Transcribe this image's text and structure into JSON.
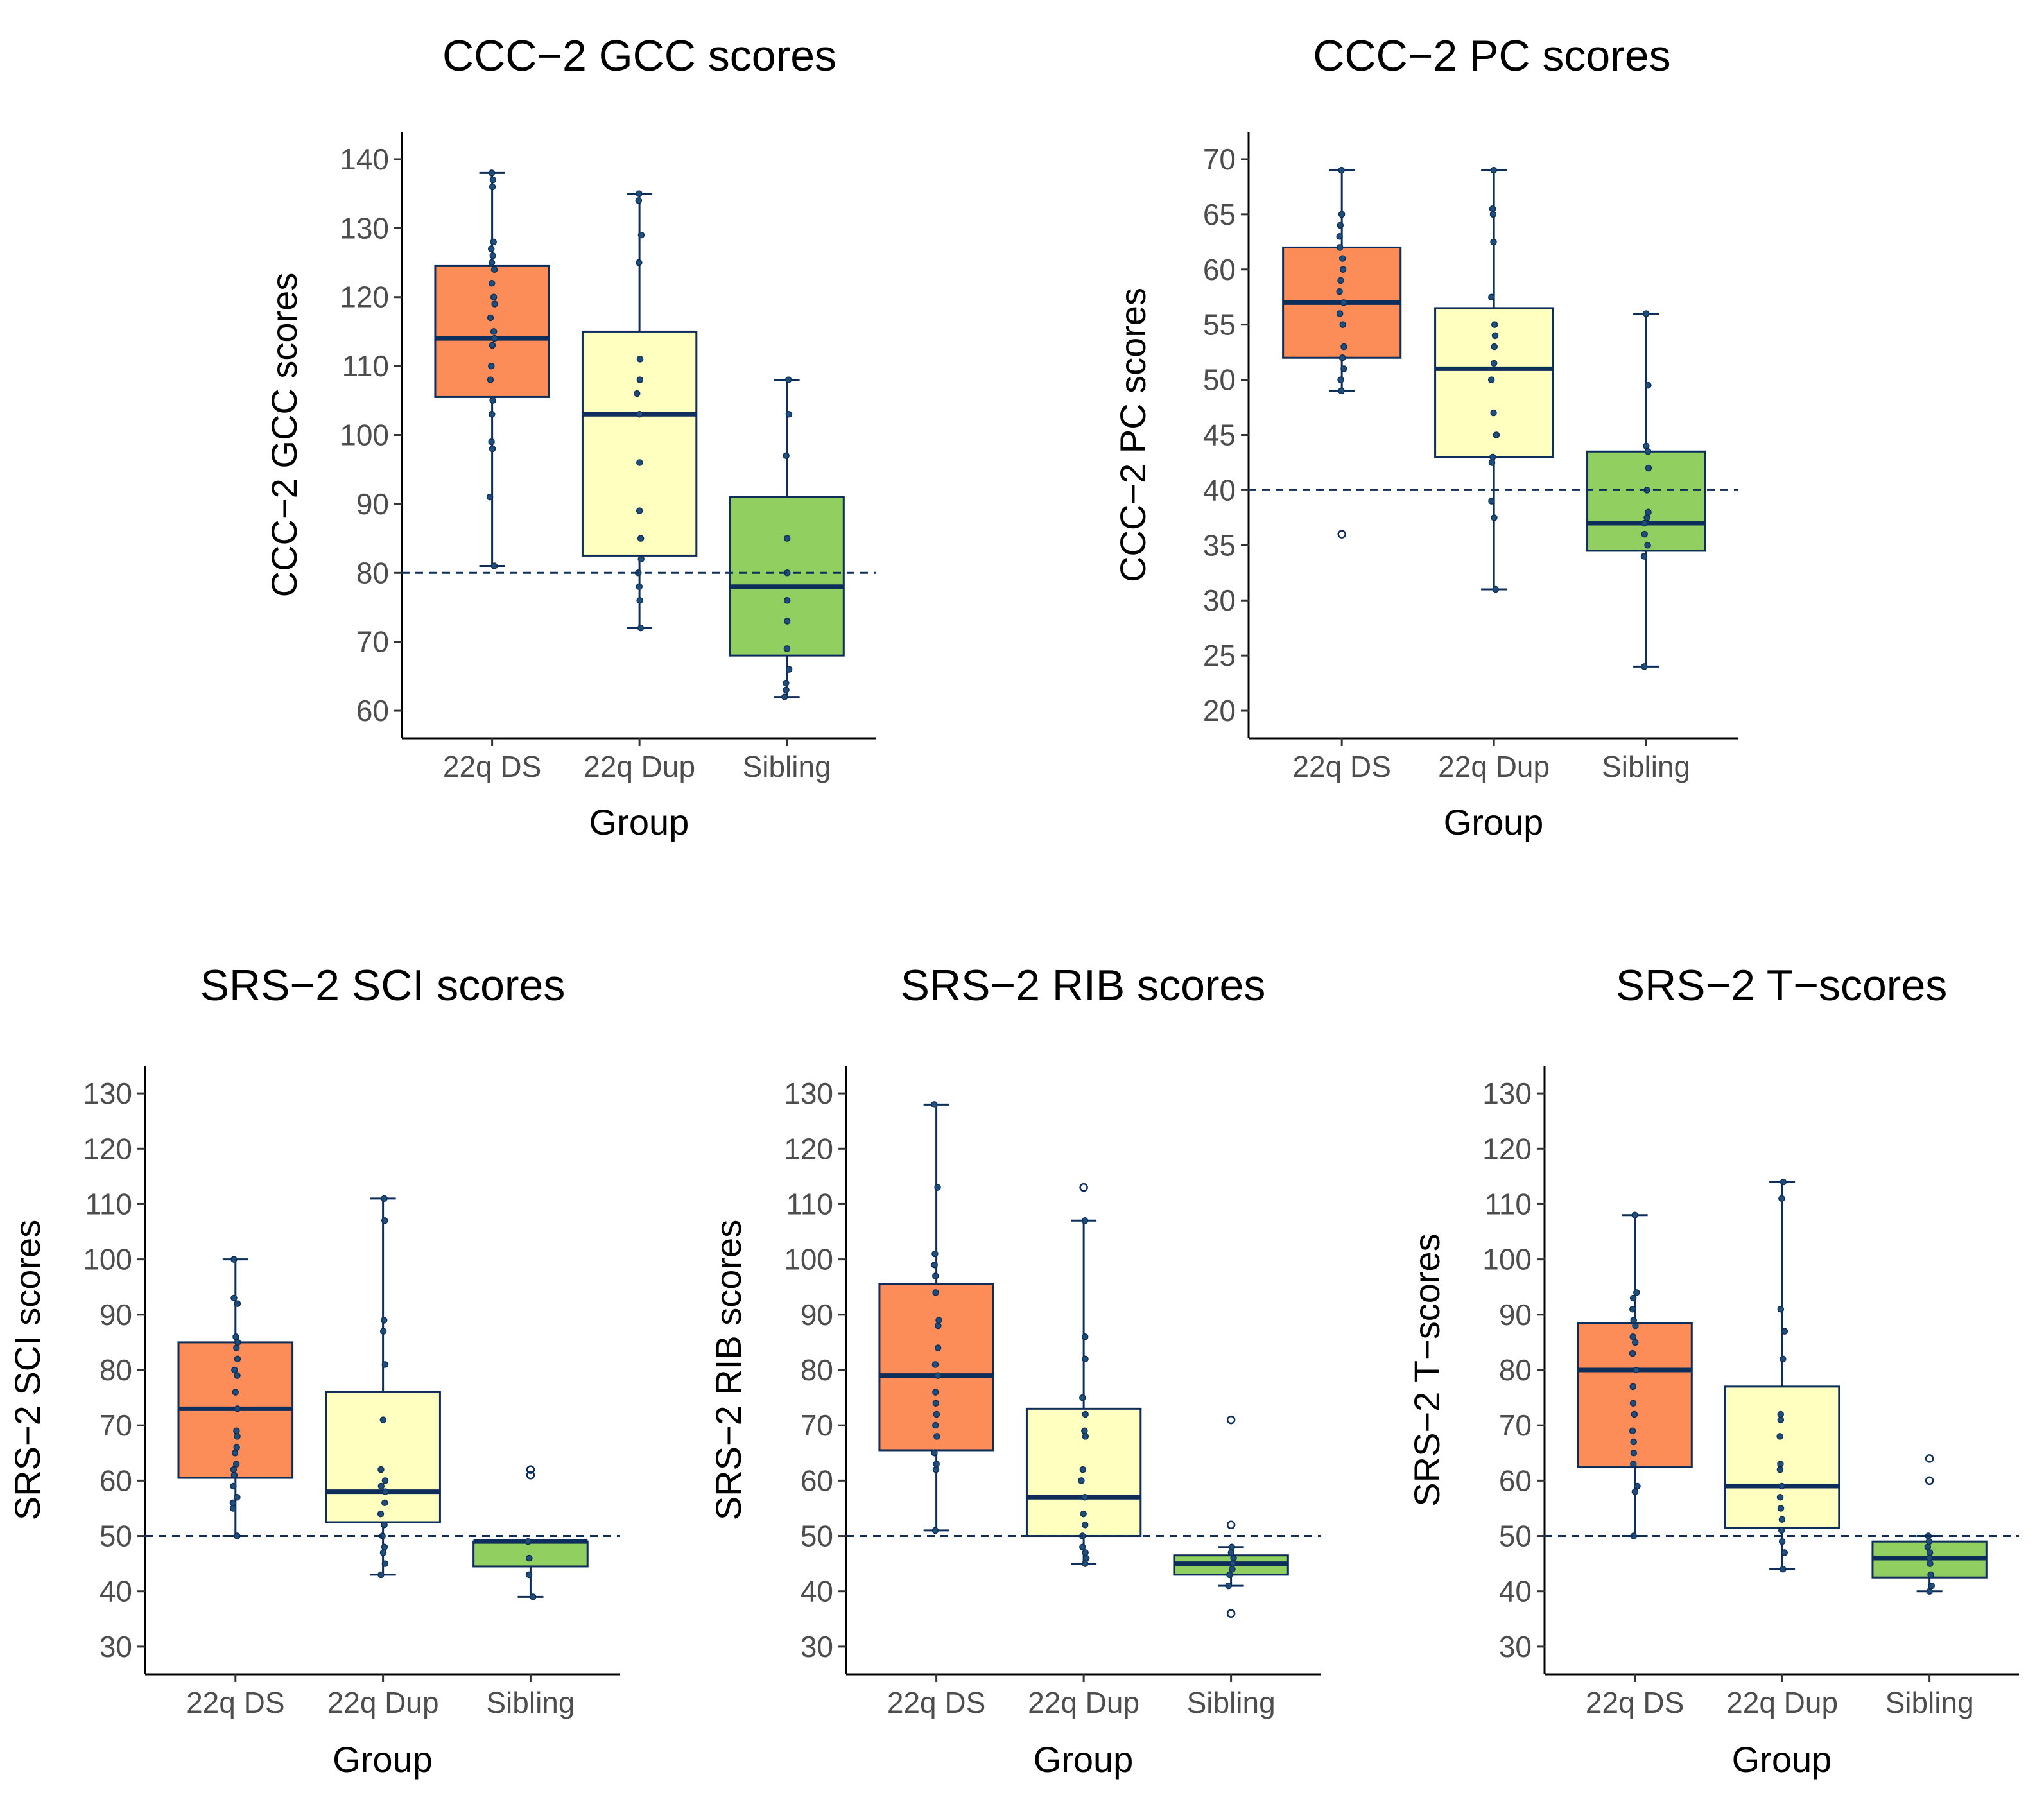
{
  "figure": {
    "group_colors": {
      "22q DS": "#fc8d59",
      "22q Dup": "#ffffbf",
      "Sibling": "#91cf60"
    },
    "line_color": "#0d2d5a"
  },
  "chart_data": [
    {
      "id": "gcc",
      "type": "boxplot",
      "title": "CCC−2 GCC scores",
      "xlabel": "Group",
      "ylabel": "CCC−2 GCC scores",
      "ylim": [
        56,
        144
      ],
      "yticks": [
        60,
        70,
        80,
        90,
        100,
        110,
        120,
        130,
        140
      ],
      "reference_line": 80,
      "categories": [
        "22q DS",
        "22q Dup",
        "Sibling"
      ],
      "boxes": [
        {
          "group": "22q DS",
          "whisker_low": 81,
          "q1": 105.5,
          "median": 114,
          "q3": 124.5,
          "whisker_high": 138,
          "outliers": [],
          "points": [
            81,
            91,
            98,
            99,
            103,
            105,
            108,
            110,
            113,
            114,
            115,
            117,
            119,
            120,
            122,
            124,
            125,
            126,
            127,
            128,
            136,
            137,
            138
          ]
        },
        {
          "group": "22q Dup",
          "whisker_low": 72,
          "q1": 82.5,
          "median": 103,
          "q3": 115,
          "whisker_high": 135,
          "outliers": [],
          "points": [
            72,
            76,
            78,
            80,
            82,
            85,
            89,
            96,
            103,
            106,
            108,
            111,
            125,
            129,
            134,
            135
          ]
        },
        {
          "group": "Sibling",
          "whisker_low": 62,
          "q1": 68,
          "median": 78,
          "q3": 91,
          "whisker_high": 108,
          "outliers": [],
          "points": [
            62,
            63,
            64,
            66,
            69,
            73,
            76,
            80,
            85,
            97,
            103,
            108
          ]
        }
      ]
    },
    {
      "id": "pc",
      "type": "boxplot",
      "title": "CCC−2 PC scores",
      "xlabel": "Group",
      "ylabel": "CCC−2 PC scores",
      "ylim": [
        17.5,
        72.5
      ],
      "yticks": [
        20,
        25,
        30,
        35,
        40,
        45,
        50,
        55,
        60,
        65,
        70
      ],
      "reference_line": 40,
      "categories": [
        "22q DS",
        "22q Dup",
        "Sibling"
      ],
      "boxes": [
        {
          "group": "22q DS",
          "whisker_low": 49,
          "q1": 52,
          "median": 57,
          "q3": 62,
          "whisker_high": 69,
          "outliers": [
            36
          ],
          "points": [
            49,
            50,
            51,
            52,
            53,
            55,
            56,
            57,
            58,
            59,
            60,
            61,
            62,
            63,
            64,
            65,
            69
          ]
        },
        {
          "group": "22q Dup",
          "whisker_low": 31,
          "q1": 43,
          "median": 51,
          "q3": 56.5,
          "whisker_high": 69,
          "outliers": [],
          "points": [
            31,
            37.5,
            39,
            42.5,
            43,
            45,
            47,
            50,
            51.5,
            53,
            54,
            55,
            57.5,
            62.5,
            65,
            65.5,
            69
          ]
        },
        {
          "group": "Sibling",
          "whisker_low": 24,
          "q1": 34.5,
          "median": 37,
          "q3": 43.5,
          "whisker_high": 56,
          "outliers": [],
          "points": [
            24,
            34,
            35,
            36,
            37,
            37.5,
            38,
            40,
            42,
            43.5,
            44,
            49.5,
            56
          ]
        }
      ]
    },
    {
      "id": "sci",
      "type": "boxplot",
      "title": "SRS−2 SCI scores",
      "xlabel": "Group",
      "ylabel": "SRS−2 SCI scores",
      "ylim": [
        25,
        135
      ],
      "yticks": [
        30,
        40,
        50,
        60,
        70,
        80,
        90,
        100,
        110,
        120,
        130
      ],
      "reference_line": 50,
      "categories": [
        "22q DS",
        "22q Dup",
        "Sibling"
      ],
      "boxes": [
        {
          "group": "22q DS",
          "whisker_low": 50,
          "q1": 60.5,
          "median": 73,
          "q3": 85,
          "whisker_high": 100,
          "outliers": [],
          "points": [
            50,
            55,
            56,
            57,
            59,
            61,
            62,
            63,
            65,
            66,
            68,
            69,
            73,
            76,
            79,
            80,
            82,
            84,
            85,
            86,
            92,
            93,
            100
          ]
        },
        {
          "group": "22q Dup",
          "whisker_low": 43,
          "q1": 52.5,
          "median": 58,
          "q3": 76,
          "whisker_high": 111,
          "outliers": [],
          "points": [
            43,
            45,
            47,
            48,
            50,
            52,
            54,
            56,
            58,
            59,
            60,
            62,
            71,
            81,
            87,
            89,
            107,
            111
          ]
        },
        {
          "group": "Sibling",
          "whisker_low": 39,
          "q1": 44.5,
          "median": 49,
          "q3": 49,
          "whisker_high": 49,
          "outliers": [
            61,
            62
          ],
          "points": [
            39,
            43,
            46,
            49
          ]
        }
      ]
    },
    {
      "id": "rib",
      "type": "boxplot",
      "title": "SRS−2 RIB scores",
      "xlabel": "Group",
      "ylabel": "SRS−2 RIB scores",
      "ylim": [
        25,
        135
      ],
      "yticks": [
        30,
        40,
        50,
        60,
        70,
        80,
        90,
        100,
        110,
        120,
        130
      ],
      "reference_line": 50,
      "categories": [
        "22q DS",
        "22q Dup",
        "Sibling"
      ],
      "boxes": [
        {
          "group": "22q DS",
          "whisker_low": 51,
          "q1": 65.5,
          "median": 79,
          "q3": 95.5,
          "whisker_high": 128,
          "outliers": [],
          "points": [
            51,
            62,
            63,
            65,
            68,
            70,
            72,
            74,
            76,
            79,
            81,
            84,
            88,
            89,
            94,
            97,
            99,
            101,
            113,
            128
          ]
        },
        {
          "group": "22q Dup",
          "whisker_low": 45,
          "q1": 50,
          "median": 57,
          "q3": 73,
          "whisker_high": 107,
          "outliers": [
            113
          ],
          "points": [
            45,
            46,
            47,
            48,
            50,
            52,
            54,
            57,
            60,
            62,
            68,
            69,
            72,
            75,
            82,
            86,
            107
          ]
        },
        {
          "group": "Sibling",
          "whisker_low": 41,
          "q1": 43,
          "median": 45,
          "q3": 46.5,
          "whisker_high": 48,
          "outliers": [
            36,
            52,
            71
          ],
          "points": [
            41,
            43,
            44,
            45,
            46,
            47,
            48
          ]
        }
      ]
    },
    {
      "id": "tscore",
      "type": "boxplot",
      "title": "SRS−2 T−scores",
      "xlabel": "Group",
      "ylabel": "SRS−2 T−scores",
      "ylim": [
        25,
        135
      ],
      "yticks": [
        30,
        40,
        50,
        60,
        70,
        80,
        90,
        100,
        110,
        120,
        130
      ],
      "reference_line": 50,
      "categories": [
        "22q DS",
        "22q Dup",
        "Sibling"
      ],
      "boxes": [
        {
          "group": "22q DS",
          "whisker_low": 50,
          "q1": 62.5,
          "median": 80,
          "q3": 88.5,
          "whisker_high": 108,
          "outliers": [],
          "points": [
            50,
            58,
            59,
            63,
            65,
            67,
            69,
            72,
            74,
            77,
            80,
            83,
            85,
            86,
            88,
            89,
            91,
            93,
            94,
            108
          ]
        },
        {
          "group": "22q Dup",
          "whisker_low": 44,
          "q1": 51.5,
          "median": 59,
          "q3": 77,
          "whisker_high": 114,
          "outliers": [],
          "points": [
            44,
            47,
            49,
            51,
            53,
            55,
            57,
            59,
            62,
            63,
            68,
            71,
            72,
            82,
            87,
            91,
            111,
            114
          ]
        },
        {
          "group": "Sibling",
          "whisker_low": 40,
          "q1": 42.5,
          "median": 46,
          "q3": 49,
          "whisker_high": 50,
          "outliers": [
            60,
            64
          ],
          "points": [
            40,
            41,
            43,
            45,
            46,
            47,
            48,
            49,
            50
          ]
        }
      ]
    }
  ]
}
